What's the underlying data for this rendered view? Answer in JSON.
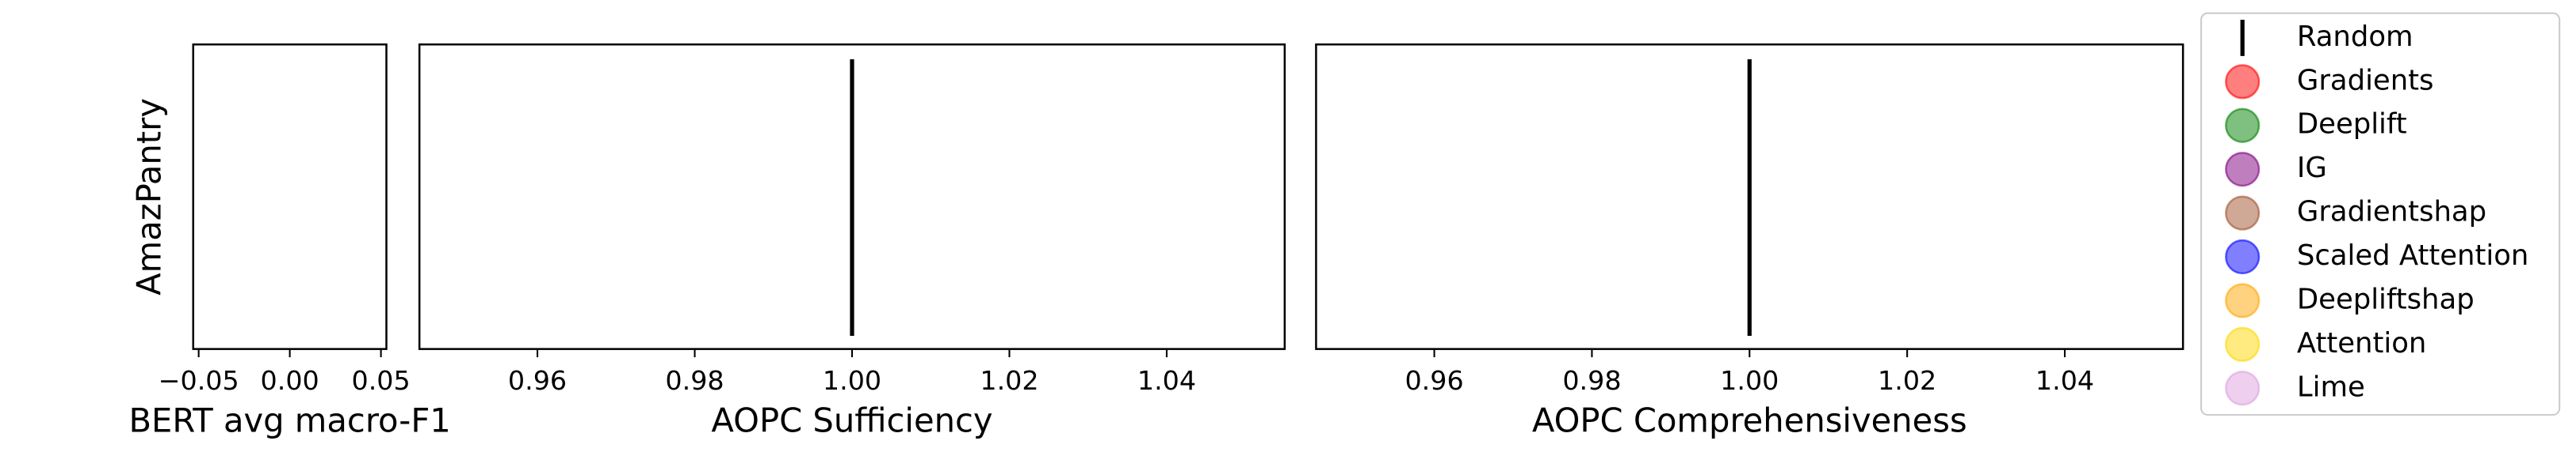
{
  "chart_data": [
    {
      "type": "scatter",
      "xlabel": "BERT avg macro-F1",
      "categories": [
        "AmazPantry"
      ],
      "xlim": [
        -0.053,
        0.053
      ],
      "xticks": [
        {
          "value": -0.05,
          "label": "−0.05"
        },
        {
          "value": 0,
          "label": "0.00"
        },
        0.05
      ],
      "series": []
    },
    {
      "type": "scatter",
      "xlabel": "AOPC Sufficiency",
      "xlim": [
        0.945,
        1.055
      ],
      "xticks": [
        0.96,
        0.98,
        {
          "value": 1.0,
          "label": "1.00"
        },
        1.02,
        1.04
      ],
      "series": [
        {
          "name": "Random",
          "color": "#000000",
          "values": [
            1.0
          ]
        }
      ]
    },
    {
      "type": "scatter",
      "xlabel": "AOPC Comprehensiveness",
      "xlim": [
        0.945,
        1.055
      ],
      "xticks": [
        0.96,
        0.98,
        {
          "value": 1.0,
          "label": "1.00"
        },
        1.02,
        1.04
      ],
      "series": [
        {
          "name": "Random",
          "color": "#000000",
          "values": [
            1.0
          ]
        }
      ]
    }
  ],
  "legend": {
    "entries": [
      {
        "name": "Random",
        "color": "#000000",
        "marker": "line"
      },
      {
        "name": "Gradients",
        "color": "#ff0000",
        "marker": "circle"
      },
      {
        "name": "Deeplift",
        "color": "#008000",
        "marker": "circle"
      },
      {
        "name": "IG",
        "color": "#800080",
        "marker": "circle"
      },
      {
        "name": "Gradientshap",
        "color": "#a0522d",
        "marker": "circle"
      },
      {
        "name": "Scaled Attention",
        "color": "#0000ff",
        "marker": "circle"
      },
      {
        "name": "Deepliftshap",
        "color": "#ffa500",
        "marker": "circle"
      },
      {
        "name": "Attention",
        "color": "#ffd700",
        "marker": "circle"
      },
      {
        "name": "Lime",
        "color": "#dda0dd",
        "marker": "circle"
      }
    ]
  }
}
